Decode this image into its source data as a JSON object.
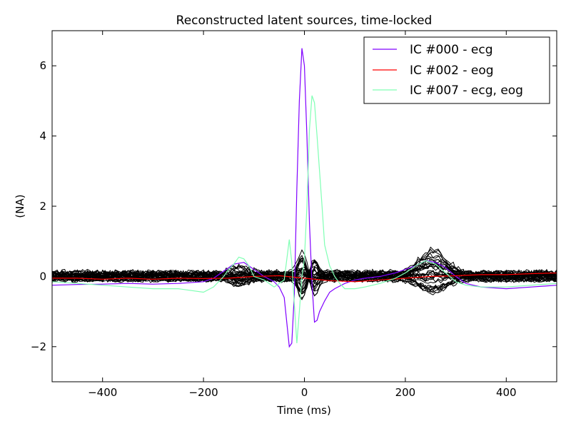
{
  "chart_data": {
    "type": "line",
    "title": "Reconstructed latent sources, time-locked",
    "xlabel": "Time (ms)",
    "ylabel": "(NA)",
    "xlim": [
      -500,
      500
    ],
    "ylim": [
      -3,
      7
    ],
    "xticks": [
      -400,
      -200,
      0,
      200,
      400
    ],
    "yticks": [
      -2,
      0,
      2,
      4,
      6
    ],
    "xtick_labels": [
      "−400",
      "−200",
      "0",
      "200",
      "400"
    ],
    "ytick_labels": [
      "−2",
      "0",
      "2",
      "4",
      "6"
    ],
    "grid": false,
    "legend_position": "upper-right",
    "series": [
      {
        "name": "IC #000 - ecg",
        "color": "#8000ff",
        "x": [
          -500,
          -450,
          -400,
          -350,
          -300,
          -250,
          -200,
          -180,
          -160,
          -140,
          -120,
          -100,
          -80,
          -60,
          -50,
          -40,
          -30,
          -25,
          -20,
          -15,
          -10,
          -5,
          0,
          5,
          10,
          15,
          20,
          25,
          30,
          40,
          50,
          60,
          80,
          100,
          120,
          150,
          180,
          200,
          220,
          240,
          260,
          280,
          300,
          320,
          350,
          400,
          450,
          500
        ],
        "y": [
          -0.25,
          -0.23,
          -0.22,
          -0.2,
          -0.22,
          -0.2,
          -0.15,
          -0.05,
          0.15,
          0.35,
          0.4,
          0.2,
          0.0,
          -0.15,
          -0.3,
          -0.6,
          -2.0,
          -1.9,
          -0.5,
          2.5,
          5.0,
          6.5,
          6.0,
          4.0,
          1.5,
          -0.2,
          -1.3,
          -1.25,
          -1.0,
          -0.7,
          -0.45,
          -0.35,
          -0.2,
          -0.1,
          -0.05,
          0.0,
          0.1,
          0.2,
          0.3,
          0.45,
          0.4,
          0.25,
          0.0,
          -0.2,
          -0.3,
          -0.35,
          -0.3,
          -0.25
        ]
      },
      {
        "name": "IC #002 - eog",
        "color": "#ff0000",
        "x": [
          -500,
          -450,
          -400,
          -350,
          -300,
          -250,
          -200,
          -150,
          -100,
          -50,
          0,
          50,
          100,
          150,
          200,
          250,
          300,
          350,
          400,
          450,
          500
        ],
        "y": [
          -0.05,
          -0.05,
          -0.08,
          -0.05,
          -0.08,
          -0.05,
          -0.06,
          -0.05,
          0.0,
          0.02,
          -0.05,
          -0.12,
          -0.15,
          -0.1,
          -0.05,
          0.0,
          0.02,
          0.05,
          0.05,
          0.08,
          0.1
        ]
      },
      {
        "name": "IC #007 - ecg, eog",
        "color": "#80ffb4",
        "x": [
          -500,
          -450,
          -400,
          -350,
          -300,
          -250,
          -200,
          -180,
          -160,
          -150,
          -140,
          -130,
          -120,
          -110,
          -100,
          -80,
          -60,
          -40,
          -30,
          -25,
          -20,
          -15,
          -10,
          -5,
          0,
          5,
          10,
          15,
          20,
          25,
          30,
          35,
          40,
          50,
          60,
          70,
          80,
          100,
          120,
          150,
          180,
          200,
          220,
          240,
          260,
          280,
          300,
          320,
          350,
          400,
          450,
          500
        ],
        "y": [
          -0.15,
          -0.2,
          -0.25,
          -0.3,
          -0.35,
          -0.35,
          -0.45,
          -0.3,
          0.0,
          0.2,
          0.35,
          0.55,
          0.5,
          0.3,
          0.0,
          -0.1,
          -0.3,
          -0.1,
          1.05,
          0.4,
          -0.8,
          -1.9,
          -1.0,
          0.0,
          0.5,
          2.0,
          4.2,
          5.15,
          4.95,
          4.0,
          3.0,
          2.0,
          0.9,
          0.3,
          0.0,
          -0.2,
          -0.35,
          -0.35,
          -0.3,
          -0.2,
          -0.05,
          0.1,
          0.3,
          0.45,
          0.35,
          0.1,
          -0.15,
          -0.25,
          -0.3,
          -0.3,
          -0.25,
          -0.2
        ]
      }
    ],
    "unlabeled_background_traces": {
      "color": "#000000",
      "description_hidden": true
    }
  }
}
